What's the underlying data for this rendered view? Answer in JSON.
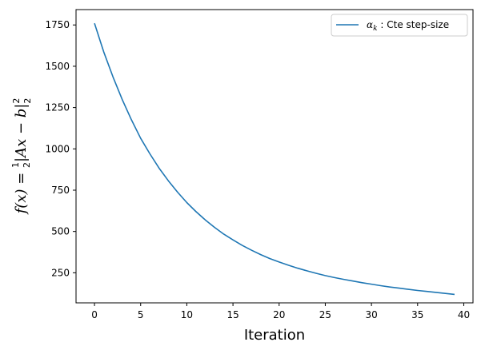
{
  "chart_data": {
    "type": "line",
    "title": "",
    "xlabel": "Iteration",
    "ylabel": {
      "prefix": "f(x) = ",
      "fraction_numerator": "1",
      "fraction_denominator": "2",
      "body": "|Ax − b|",
      "superscript": "2",
      "subscript": "2"
    },
    "xlim": [
      -2,
      41
    ],
    "ylim": [
      68,
      1843
    ],
    "x_ticks": [
      0,
      5,
      10,
      15,
      20,
      25,
      30,
      35,
      40
    ],
    "y_ticks": [
      250,
      500,
      750,
      1000,
      1250,
      1500,
      1750
    ],
    "grid": false,
    "legend_position": "top-right",
    "series": [
      {
        "name_symbol": "α",
        "name_subscript": "k",
        "name_text": " : Cte step-size",
        "color": "#1f77b4",
        "x": [
          0,
          1,
          2,
          3,
          4,
          5,
          6,
          7,
          8,
          9,
          10,
          11,
          12,
          13,
          14,
          15,
          16,
          17,
          18,
          19,
          20,
          21,
          22,
          23,
          24,
          25,
          26,
          27,
          28,
          29,
          30,
          31,
          32,
          33,
          34,
          35,
          36,
          37,
          38,
          39
        ],
        "values": [
          1760,
          1587,
          1436,
          1299,
          1176,
          1064,
          970,
          883,
          807,
          738,
          675,
          620,
          570,
          525,
          484,
          449,
          416,
          387,
          360,
          336,
          315,
          296,
          278,
          262,
          247,
          233,
          221,
          210,
          200,
          190,
          181,
          172,
          164,
          157,
          150,
          143,
          137,
          131,
          125,
          119
        ]
      }
    ]
  }
}
